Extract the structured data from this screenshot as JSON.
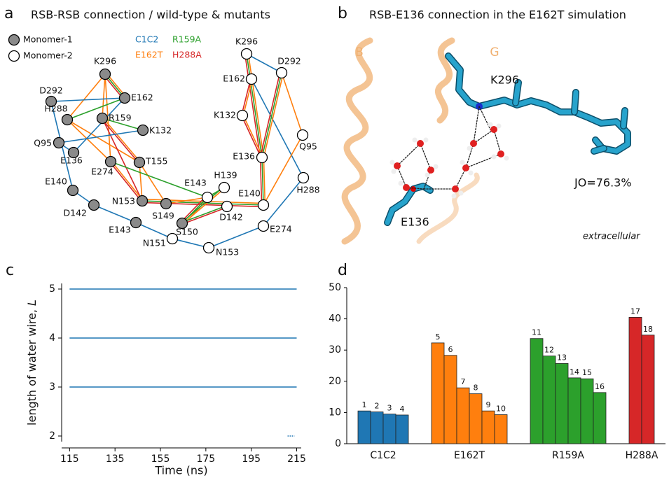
{
  "panel_labels": [
    "a",
    "b",
    "c",
    "d"
  ],
  "panel_a": {
    "title": "RSB-RSB connection / wild-type & mutants",
    "monomers": [
      "Monomer-1",
      "Monomer-2"
    ],
    "variants": [
      {
        "name": "C1C2",
        "color": "#1f77b4"
      },
      {
        "name": "E162T",
        "color": "#ff7f0e"
      },
      {
        "name": "R159A",
        "color": "#2ca02c"
      },
      {
        "name": "H288A",
        "color": "#d62728"
      }
    ],
    "nodes": [
      {
        "label": "K296",
        "monomer": 0
      },
      {
        "label": "E162",
        "monomer": 0
      },
      {
        "label": "D292",
        "monomer": 0
      },
      {
        "label": "H288",
        "monomer": 0
      },
      {
        "label": "R159",
        "monomer": 0
      },
      {
        "label": "K132",
        "monomer": 0
      },
      {
        "label": "Q95",
        "monomer": 0
      },
      {
        "label": "E136",
        "monomer": 0
      },
      {
        "label": "E274",
        "monomer": 0
      },
      {
        "label": "T155",
        "monomer": 0
      },
      {
        "label": "E140",
        "monomer": 0
      },
      {
        "label": "D142",
        "monomer": 0
      },
      {
        "label": "N153",
        "monomer": 0
      },
      {
        "label": "S149",
        "monomer": 0
      },
      {
        "label": "E143",
        "monomer": 0
      },
      {
        "label": "S150",
        "monomer": 0
      },
      {
        "label": "K296",
        "monomer": 1
      },
      {
        "label": "D292",
        "monomer": 1
      },
      {
        "label": "E162",
        "monomer": 1
      },
      {
        "label": "K132",
        "monomer": 1
      },
      {
        "label": "Q95",
        "monomer": 1
      },
      {
        "label": "E136",
        "monomer": 1
      },
      {
        "label": "H288",
        "monomer": 1
      },
      {
        "label": "H139",
        "monomer": 1
      },
      {
        "label": "E143",
        "monomer": 1
      },
      {
        "label": "E140",
        "monomer": 1
      },
      {
        "label": "D142",
        "monomer": 1
      },
      {
        "label": "E274",
        "monomer": 1
      },
      {
        "label": "N151",
        "monomer": 1
      },
      {
        "label": "N153",
        "monomer": 1
      }
    ],
    "edges": [
      {
        "from": 0,
        "to": 1,
        "variants": [
          1,
          2,
          3
        ]
      },
      {
        "from": 0,
        "to": 3,
        "variants": [
          1
        ]
      },
      {
        "from": 0,
        "to": 4,
        "variants": [
          1
        ]
      },
      {
        "from": 0,
        "to": 8,
        "variants": [
          1
        ]
      },
      {
        "from": 2,
        "to": 1,
        "variants": [
          0
        ]
      },
      {
        "from": 2,
        "to": 10,
        "variants": [
          0
        ]
      },
      {
        "from": 3,
        "to": 1,
        "variants": [
          2
        ]
      },
      {
        "from": 3,
        "to": 8,
        "variants": [
          1
        ]
      },
      {
        "from": 3,
        "to": 9,
        "variants": [
          1
        ]
      },
      {
        "from": 4,
        "to": 5,
        "variants": [
          2
        ]
      },
      {
        "from": 4,
        "to": 9,
        "variants": [
          1,
          3
        ]
      },
      {
        "from": 4,
        "to": 12,
        "variants": [
          3
        ]
      },
      {
        "from": 6,
        "to": 5,
        "variants": [
          0
        ]
      },
      {
        "from": 6,
        "to": 7,
        "variants": [
          0
        ]
      },
      {
        "from": 7,
        "to": 1,
        "variants": [
          0
        ]
      },
      {
        "from": 8,
        "to": 12,
        "variants": [
          1,
          3
        ]
      },
      {
        "from": 9,
        "to": 12,
        "variants": [
          1
        ]
      },
      {
        "from": 9,
        "to": 13,
        "variants": [
          1
        ]
      },
      {
        "from": 8,
        "to": 24,
        "variants": [
          2
        ]
      },
      {
        "from": 10,
        "to": 11,
        "variants": [
          0
        ]
      },
      {
        "from": 11,
        "to": 14,
        "variants": [
          0
        ]
      },
      {
        "from": 14,
        "to": 28,
        "variants": [
          0
        ]
      },
      {
        "from": 28,
        "to": 29,
        "variants": [
          0
        ]
      },
      {
        "from": 29,
        "to": 27,
        "variants": [
          0
        ]
      },
      {
        "from": 27,
        "to": 22,
        "variants": [
          0
        ]
      },
      {
        "from": 22,
        "to": 18,
        "variants": [
          0
        ]
      },
      {
        "from": 16,
        "to": 17,
        "variants": [
          0
        ]
      },
      {
        "from": 16,
        "to": 21,
        "variants": [
          1,
          2,
          3
        ]
      },
      {
        "from": 17,
        "to": 21,
        "variants": [
          1,
          2,
          3
        ]
      },
      {
        "from": 18,
        "to": 19,
        "variants": [
          1,
          3
        ]
      },
      {
        "from": 19,
        "to": 21,
        "variants": [
          1,
          3
        ]
      },
      {
        "from": 17,
        "to": 20,
        "variants": [
          1
        ]
      },
      {
        "from": 20,
        "to": 25,
        "variants": [
          1
        ]
      },
      {
        "from": 21,
        "to": 25,
        "variants": [
          1,
          2,
          3
        ]
      },
      {
        "from": 12,
        "to": 25,
        "variants": [
          1,
          2,
          3
        ]
      },
      {
        "from": 24,
        "to": 15,
        "variants": [
          1,
          2,
          3
        ]
      },
      {
        "from": 23,
        "to": 15,
        "variants": [
          1,
          2
        ]
      },
      {
        "from": 23,
        "to": 24,
        "variants": [
          2
        ]
      },
      {
        "from": 13,
        "to": 24,
        "variants": [
          1
        ]
      },
      {
        "from": 15,
        "to": 26,
        "variants": [
          2,
          3
        ]
      }
    ]
  },
  "panel_b": {
    "title": "RSB-E136 connection in the E162T simulation",
    "helix_labels": [
      "B",
      "G"
    ],
    "residue_labels": [
      "K296",
      "E136"
    ],
    "annotation": "JO=76.3%",
    "region": "extracellular"
  },
  "chart_data": [
    {
      "type": "line",
      "xlabel": "Time (ns)",
      "ylabel": "length of water wire,",
      "ylabel_symbol": "L",
      "series": [
        {
          "color": "#1f77b4",
          "x": [
            115,
            215
          ],
          "values": [
            5,
            5
          ]
        },
        {
          "color": "#1f77b4",
          "x": [
            115,
            215
          ],
          "values": [
            4,
            4
          ]
        },
        {
          "color": "#1f77b4",
          "x": [
            115,
            215
          ],
          "values": [
            3,
            3
          ]
        },
        {
          "color": "#1f77b4",
          "x": [
            211,
            214
          ],
          "values": [
            2,
            2
          ]
        }
      ],
      "xlim": [
        111.5,
        217
      ],
      "xticks": [
        115,
        135,
        155,
        175,
        195,
        215
      ],
      "ylim": [
        1.8,
        5.2
      ],
      "yticks": [
        2,
        3,
        4,
        5
      ]
    },
    {
      "type": "bar",
      "series": [
        {
          "name": "C1C2",
          "color": "#1f77b4",
          "values": [
            10.5,
            10.2,
            9.5,
            9.2
          ],
          "bar_labels": [
            1,
            2,
            3,
            4
          ]
        },
        {
          "name": "E162T",
          "color": "#ff7f0e",
          "values": [
            32.3,
            28.3,
            17.9,
            16.0,
            10.5,
            9.3
          ],
          "bar_labels": [
            5,
            6,
            7,
            8,
            9,
            10
          ]
        },
        {
          "name": "R159A",
          "color": "#2ca02c",
          "values": [
            33.7,
            28.1,
            25.7,
            21.1,
            20.8,
            16.4
          ],
          "bar_labels": [
            11,
            12,
            13,
            14,
            15,
            16
          ]
        },
        {
          "name": "H288A",
          "color": "#d62728",
          "values": [
            40.5,
            34.8
          ],
          "bar_labels": [
            17,
            18
          ]
        }
      ],
      "ylim": [
        0,
        50
      ],
      "yticks": [
        0,
        10,
        20,
        30,
        40,
        50
      ]
    }
  ]
}
